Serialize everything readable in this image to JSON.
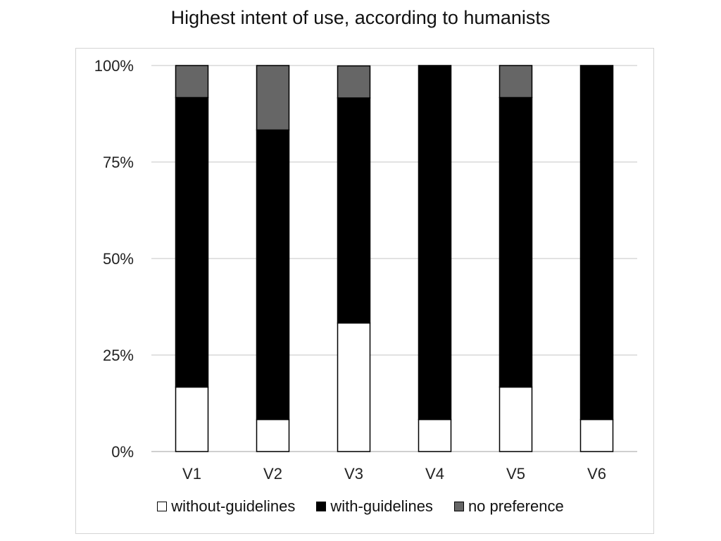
{
  "chart_data": {
    "type": "bar",
    "stacked": true,
    "title": "Highest intent of use, according to humanists",
    "xlabel": "",
    "ylabel": "",
    "categories": [
      "V1",
      "V2",
      "V3",
      "V4",
      "V5",
      "V6"
    ],
    "ylim": [
      0,
      100
    ],
    "yticks": [
      0,
      25,
      50,
      75,
      100
    ],
    "ytick_labels": [
      "0%",
      "25%",
      "50%",
      "75%",
      "100%"
    ],
    "grid": true,
    "legend_position": "bottom",
    "series": [
      {
        "name": "without-guidelines",
        "color": "#ffffff",
        "values": [
          16.7,
          8.3,
          33.3,
          8.3,
          16.7,
          8.3
        ]
      },
      {
        "name": "with-guidelines",
        "color": "#000000",
        "values": [
          75.0,
          75.0,
          58.3,
          91.7,
          75.0,
          91.7
        ]
      },
      {
        "name": "no preference",
        "color": "#666666",
        "values": [
          8.3,
          16.7,
          8.3,
          0,
          8.3,
          0
        ]
      }
    ]
  }
}
